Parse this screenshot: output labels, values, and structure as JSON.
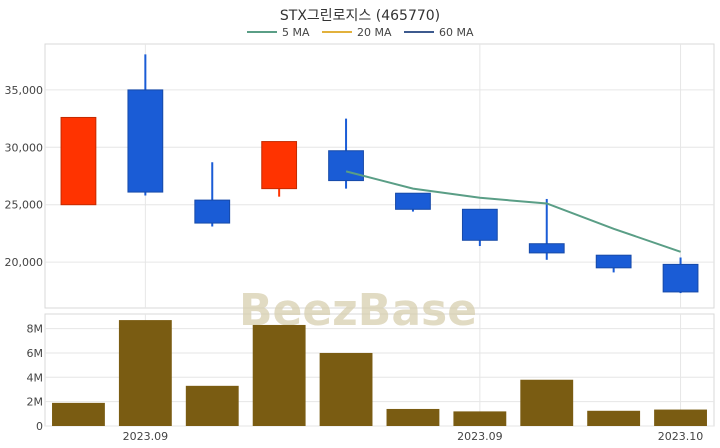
{
  "chart_data": {
    "type": "candlestick",
    "title": "STX그린로지스 (465770)",
    "legend": {
      "placement": "top-center",
      "items": [
        {
          "name": "5 MA",
          "color": "#5a9e86"
        },
        {
          "name": "20 MA",
          "color": "#e2b13c"
        },
        {
          "name": "60 MA",
          "color": "#3d5a8e"
        }
      ]
    },
    "price_axis": {
      "ylim": [
        16000,
        39000
      ],
      "ticks": [
        20000,
        25000,
        30000,
        35000
      ],
      "tick_labels": [
        "20,000",
        "25,000",
        "30,000",
        "35,000"
      ]
    },
    "volume_axis": {
      "ylim": [
        0,
        9200000
      ],
      "ticks": [
        0,
        2000000,
        4000000,
        6000000,
        8000000
      ],
      "tick_labels": [
        "0",
        "2M",
        "4M",
        "6M",
        "8M"
      ]
    },
    "x_tick_labels": [
      {
        "index": 1,
        "label": "2023.09"
      },
      {
        "index": 6,
        "label": "2023.09"
      },
      {
        "index": 9,
        "label": "2023.10"
      }
    ],
    "candles": [
      {
        "open": 25000,
        "high": 32600,
        "low": 25000,
        "close": 32600
      },
      {
        "open": 35000,
        "high": 38100,
        "low": 25800,
        "close": 26100
      },
      {
        "open": 25400,
        "high": 28700,
        "low": 23100,
        "close": 23400
      },
      {
        "open": 26400,
        "high": 30500,
        "low": 25700,
        "close": 30500
      },
      {
        "open": 29700,
        "high": 32500,
        "low": 26400,
        "close": 27100
      },
      {
        "open": 26000,
        "high": 26000,
        "low": 24400,
        "close": 24600
      },
      {
        "open": 24600,
        "high": 24600,
        "low": 21400,
        "close": 21900
      },
      {
        "open": 21600,
        "high": 25500,
        "low": 20200,
        "close": 20800
      },
      {
        "open": 20600,
        "high": 20600,
        "low": 19100,
        "close": 19500
      },
      {
        "open": 19800,
        "high": 20400,
        "low": 17300,
        "close": 17400
      }
    ],
    "series": [
      {
        "name": "5 MA",
        "start_index": 4,
        "values": [
          27900,
          26400,
          25600,
          25100,
          22900,
          20900
        ]
      }
    ],
    "volume": [
      1900000,
      8700000,
      3300000,
      8300000,
      6000000,
      1400000,
      1200000,
      3800000,
      1250000,
      1350000
    ],
    "colors": {
      "up": "#ff3300",
      "down": "#1a5cd6",
      "volume": "#7a5c12",
      "grid": "#e6e6e6",
      "panel_border": "#d9d9d9"
    }
  },
  "watermark": "BeezBase"
}
